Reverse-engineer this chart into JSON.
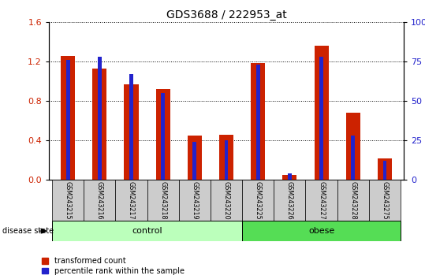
{
  "title": "GDS3688 / 222953_at",
  "samples": [
    "GSM243215",
    "GSM243216",
    "GSM243217",
    "GSM243218",
    "GSM243219",
    "GSM243220",
    "GSM243225",
    "GSM243226",
    "GSM243227",
    "GSM243228",
    "GSM243275"
  ],
  "transformed_count": [
    1.26,
    1.13,
    0.97,
    0.92,
    0.45,
    0.46,
    1.19,
    0.05,
    1.36,
    0.68,
    0.22
  ],
  "percentile_rank_pct": [
    76,
    78,
    67,
    55,
    24,
    25,
    73,
    4,
    78,
    28,
    12
  ],
  "groups": [
    {
      "label": "control",
      "start": 0,
      "end": 6,
      "color": "#bbffbb"
    },
    {
      "label": "obese",
      "start": 6,
      "end": 11,
      "color": "#55dd55"
    }
  ],
  "ylim_left": [
    0,
    1.6
  ],
  "ylim_right": [
    0,
    100
  ],
  "yticks_left": [
    0,
    0.4,
    0.8,
    1.2,
    1.6
  ],
  "yticks_right": [
    0,
    25,
    50,
    75,
    100
  ],
  "bar_color_red": "#cc2200",
  "bar_color_blue": "#2222cc",
  "background_color": "#ffffff",
  "label_box_color": "#cccccc",
  "legend_labels": [
    "transformed count",
    "percentile rank within the sample"
  ],
  "disease_state_label": "disease state"
}
